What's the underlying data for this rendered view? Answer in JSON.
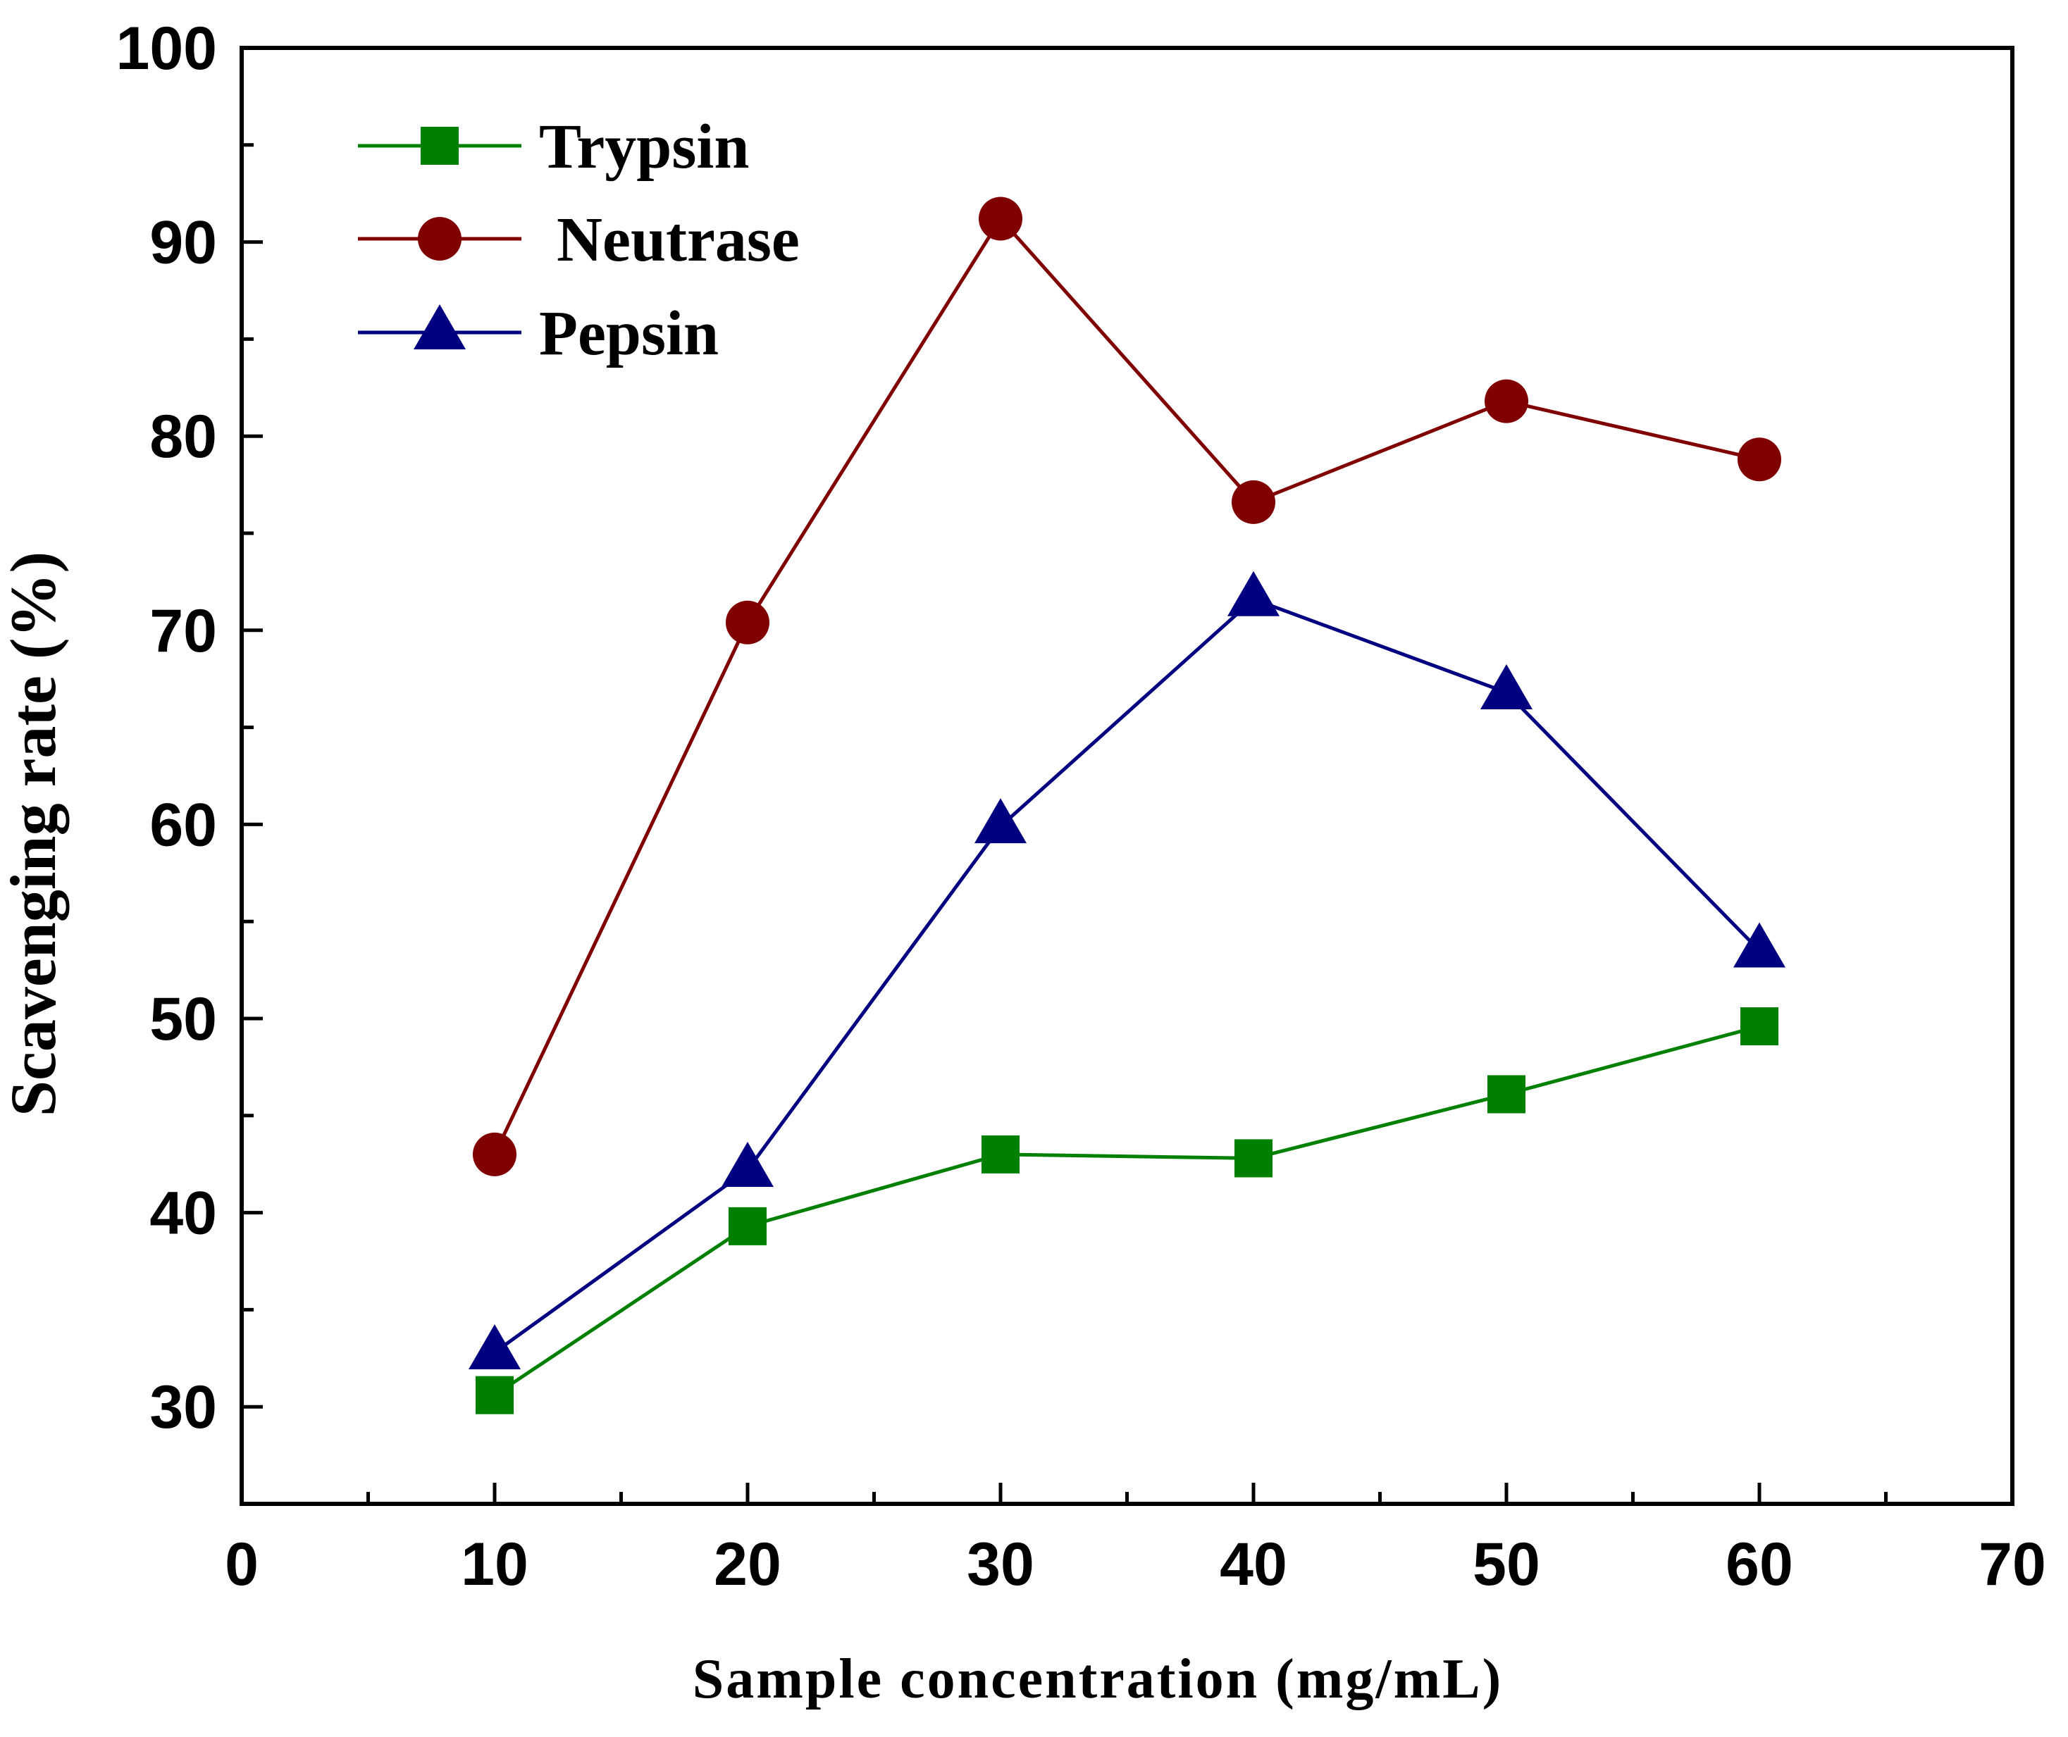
{
  "chart_data": {
    "type": "line",
    "title": "",
    "xlabel": "Sample concentration (mg/mL)",
    "ylabel": "Scavenging rate (%)",
    "xlim": [
      0,
      70
    ],
    "ylim": [
      25,
      100
    ],
    "xticks": [
      0,
      10,
      20,
      30,
      40,
      50,
      60,
      70
    ],
    "yticks": [
      30,
      40,
      50,
      60,
      70,
      80,
      90,
      100
    ],
    "x_minor_step": 5,
    "y_minor_step": 5,
    "grid": false,
    "legend_position": "top-left",
    "x": [
      10,
      20,
      30,
      40,
      50,
      60
    ],
    "series": [
      {
        "name": "Trypsin",
        "marker": "square",
        "color": "#008000",
        "values": [
          30.6,
          39.3,
          43.0,
          42.8,
          46.1,
          49.6
        ]
      },
      {
        "name": "Neutrase",
        "marker": "circle",
        "color": "#800000",
        "values": [
          43.0,
          70.4,
          91.2,
          76.6,
          81.8,
          78.8
        ]
      },
      {
        "name": "Pepsin",
        "marker": "triangle",
        "color": "#000080",
        "values": [
          32.8,
          42.2,
          59.9,
          71.6,
          66.8,
          53.5
        ]
      }
    ]
  }
}
